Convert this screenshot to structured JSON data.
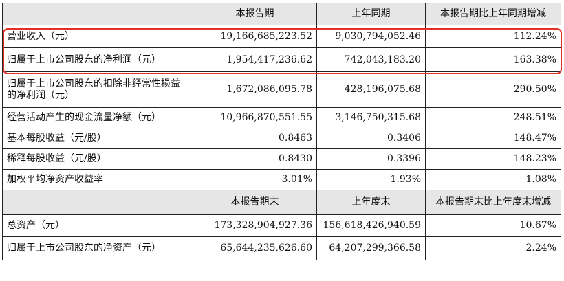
{
  "table": {
    "header": {
      "col1": "本报告期",
      "col2": "上年同期",
      "col3": "本报告期比上年同期增减"
    },
    "rows": [
      {
        "label": "营业收入（元）",
        "current": "19,166,685,223.52",
        "prior": "9,030,794,052.46",
        "change": "112.24%"
      },
      {
        "label": "归属于上市公司股东的净利润（元）",
        "current": "1,954,417,236.62",
        "prior": "742,043,183.20",
        "change": "163.38%"
      },
      {
        "label": "归属于上市公司股东的扣除非经常性损益的净利润（元）",
        "current": "1,672,086,095.78",
        "prior": "428,196,075.68",
        "change": "290.50%"
      },
      {
        "label": "经营活动产生的现金流量净额（元）",
        "current": "10,966,870,551.55",
        "prior": "3,146,750,315.68",
        "change": "248.51%"
      },
      {
        "label": "基本每股收益（元/股）",
        "current": "0.8463",
        "prior": "0.3406",
        "change": "148.47%"
      },
      {
        "label": "稀释每股收益（元/股）",
        "current": "0.8430",
        "prior": "0.3396",
        "change": "148.23%"
      },
      {
        "label": "加权平均净资产收益率",
        "current": "3.01%",
        "prior": "1.93%",
        "change": "1.08%"
      }
    ],
    "header2": {
      "col1": "本报告期末",
      "col2": "上年度末",
      "col3": "本报告期末比上年度末增减"
    },
    "rows2": [
      {
        "label": "总资产（元）",
        "current": "173,328,904,927.36",
        "prior": "156,618,426,940.59",
        "change": "10.67%"
      },
      {
        "label": "归属于上市公司股东的净资产（元）",
        "current": "65,644,235,626.60",
        "prior": "64,207,299,366.58",
        "change": "2.24%"
      }
    ]
  },
  "highlight": {
    "color": "#e0302a"
  }
}
